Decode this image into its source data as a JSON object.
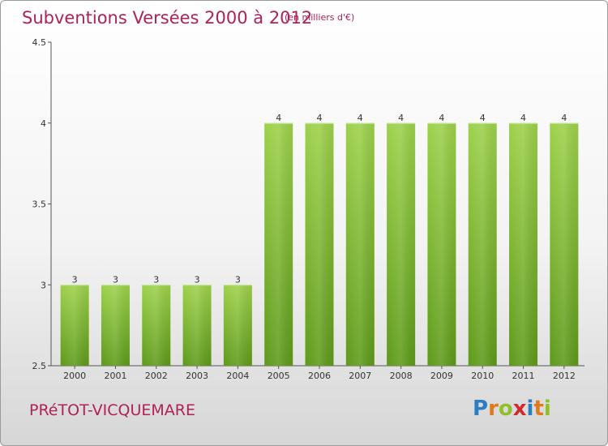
{
  "header": {
    "title": "Subventions Versées 2000 à 2012",
    "unit_note": "(en milliers d'€)"
  },
  "footer": {
    "commune": "PRéTOT-VICQUEMARE",
    "logo_letters": [
      "P",
      "r",
      "o",
      "x",
      "i",
      "t",
      "i"
    ],
    "logo_colors": [
      "#2a7ec1",
      "#e07a1c",
      "#8fbf2a",
      "#d22a2a",
      "#2a7ec1",
      "#e07a1c",
      "#8fbf2a"
    ]
  },
  "colors": {
    "accent": "#b0205a",
    "bar_top": "#9dd14b",
    "bar_bottom": "#5e9a1a"
  },
  "chart_data": {
    "type": "bar",
    "title": "Subventions Versées 2000 à 2012",
    "subtitle": "(en milliers d'€)",
    "categories": [
      "2000",
      "2001",
      "2002",
      "2003",
      "2004",
      "2005",
      "2006",
      "2007",
      "2008",
      "2009",
      "2010",
      "2011",
      "2012"
    ],
    "values": [
      3,
      3,
      3,
      3,
      3,
      4,
      4,
      4,
      4,
      4,
      4,
      4,
      4
    ],
    "data_labels": [
      "3",
      "3",
      "3",
      "3",
      "3",
      "4",
      "4",
      "4",
      "4",
      "4",
      "4",
      "4",
      "4"
    ],
    "ylim": [
      2.5,
      4.5
    ],
    "yticks": [
      2.5,
      3,
      3.5,
      4,
      4.5
    ],
    "ytick_labels": [
      "2.5",
      "3",
      "3.5",
      "4",
      "4.5"
    ],
    "grid": false,
    "legend": "none"
  }
}
